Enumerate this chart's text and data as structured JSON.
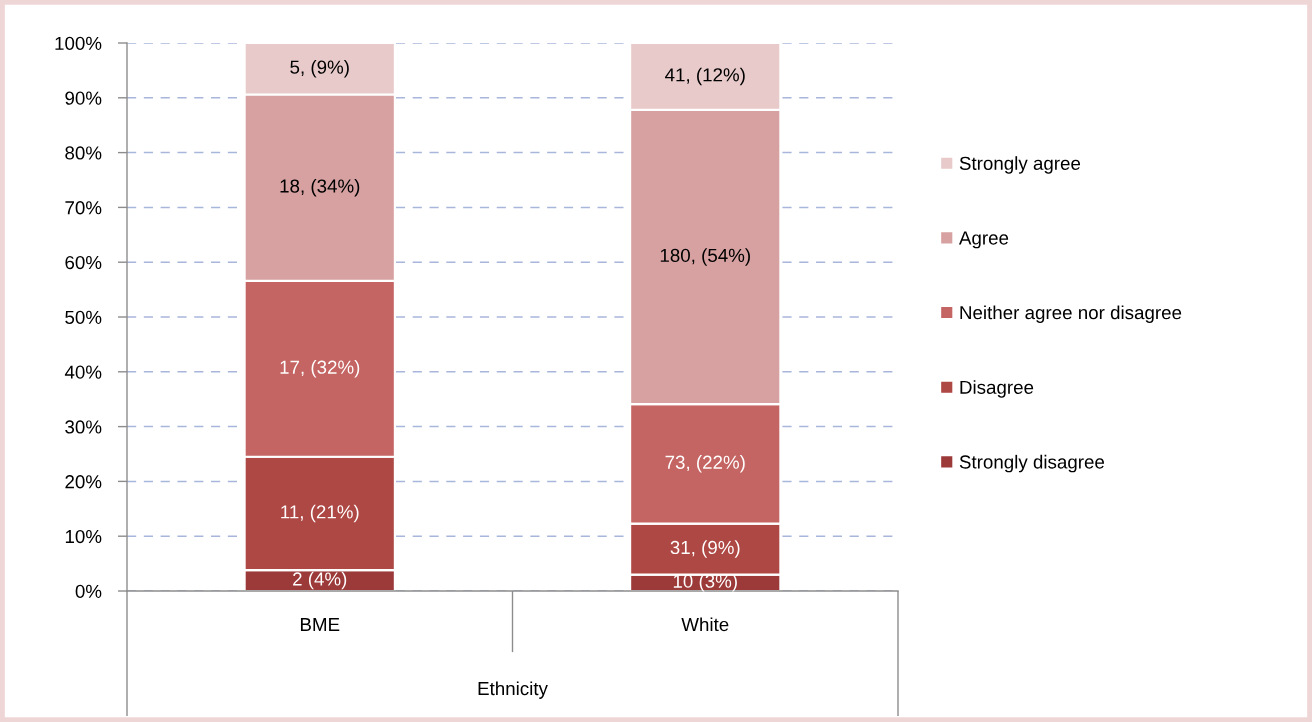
{
  "chart_data": {
    "type": "bar",
    "stacked": true,
    "xlabel": "Ethnicity",
    "categories": [
      "BME",
      "White"
    ],
    "series": [
      {
        "name": "Strongly disagree",
        "color": "#9c3a3a",
        "values": [
          3.8,
          3.0
        ],
        "value_labels": [
          "2 (4%)",
          "10 (3%)"
        ]
      },
      {
        "name": "Disagree",
        "color": "#ae4845",
        "values": [
          20.7,
          9.3
        ],
        "value_labels": [
          "11, (21%)",
          "31, (9%)"
        ]
      },
      {
        "name": "Neither agree nor disagree",
        "color": "#c46563",
        "values": [
          32.1,
          21.8
        ],
        "value_labels": [
          "17, (32%)",
          "73, (22%)"
        ]
      },
      {
        "name": "Agree",
        "color": "#d6a1a0",
        "values": [
          34.0,
          53.7
        ],
        "value_labels": [
          "18, (34%)",
          "180, (54%)"
        ]
      },
      {
        "name": "Strongly agree",
        "color": "#e8caca",
        "values": [
          9.4,
          12.2
        ],
        "value_labels": [
          "5, (9%)",
          "41, (12%)"
        ]
      }
    ],
    "ylim": [
      0,
      100
    ],
    "yticks": [
      {
        "value": 0,
        "label": "0%"
      },
      {
        "value": 10,
        "label": "10%"
      },
      {
        "value": 20,
        "label": "20%"
      },
      {
        "value": 30,
        "label": "30%"
      },
      {
        "value": 40,
        "label": "40%"
      },
      {
        "value": 50,
        "label": "50%"
      },
      {
        "value": 60,
        "label": "60%"
      },
      {
        "value": 70,
        "label": "70%"
      },
      {
        "value": 80,
        "label": "80%"
      },
      {
        "value": 90,
        "label": "90%"
      },
      {
        "value": 100,
        "label": "100%"
      }
    ],
    "grid": "y",
    "legend": "right"
  }
}
